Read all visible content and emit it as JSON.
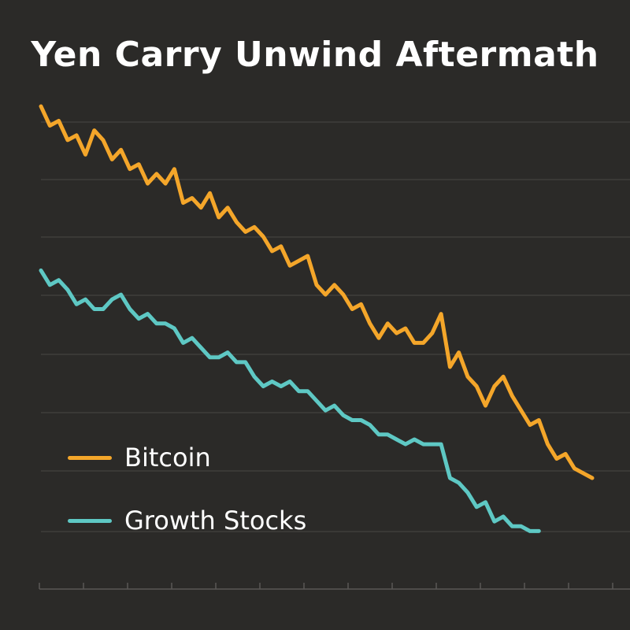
{
  "chart_data": {
    "type": "line",
    "title": "Yen Carry Unwind Aftermath",
    "xlabel": "",
    "ylabel": "",
    "xlim": [
      0,
      62
    ],
    "ylim": [
      0,
      100
    ],
    "grid": true,
    "legend_position": "bottom-left",
    "series": [
      {
        "name": "Bitcoin",
        "color": "#f4a62a",
        "x": [
          0,
          1,
          2,
          3,
          4,
          5,
          6,
          7,
          8,
          9,
          10,
          11,
          12,
          13,
          14,
          15,
          16,
          17,
          18,
          19,
          20,
          21,
          22,
          23,
          24,
          25,
          26,
          27,
          28,
          29,
          30,
          31,
          32,
          33,
          34,
          35,
          36,
          37,
          38,
          39,
          40,
          41,
          42,
          43,
          44,
          45,
          46,
          47,
          48,
          49,
          50,
          51,
          52,
          53,
          54,
          55,
          56,
          57,
          58,
          59,
          60,
          61,
          62
        ],
        "values": [
          100,
          96,
          97,
          93,
          94,
          90,
          95,
          93,
          89,
          91,
          87,
          88,
          84,
          86,
          84,
          87,
          80,
          81,
          79,
          82,
          77,
          79,
          76,
          74,
          75,
          73,
          70,
          71,
          67,
          68,
          69,
          63,
          61,
          63,
          61,
          58,
          59,
          55,
          52,
          55,
          53,
          54,
          51,
          51,
          53,
          57,
          46,
          49,
          44,
          42,
          38,
          42,
          44,
          40,
          37,
          34,
          35,
          30,
          27,
          28,
          25,
          24,
          23
        ],
        "y_unit": "relative"
      },
      {
        "name": "Growth Stocks",
        "color": "#5ec8c4",
        "x": [
          0,
          1,
          2,
          3,
          4,
          5,
          6,
          7,
          8,
          9,
          10,
          11,
          12,
          13,
          14,
          15,
          16,
          17,
          18,
          19,
          20,
          21,
          22,
          23,
          24,
          25,
          26,
          27,
          28,
          29,
          30,
          31,
          32,
          33,
          34,
          35,
          36,
          37,
          38,
          39,
          40,
          41,
          42,
          43,
          44,
          45,
          46,
          47,
          48,
          49,
          50,
          51,
          52,
          53,
          54,
          55,
          56
        ],
        "values": [
          66,
          63,
          64,
          62,
          59,
          60,
          58,
          58,
          60,
          61,
          58,
          56,
          57,
          55,
          55,
          54,
          51,
          52,
          50,
          48,
          48,
          49,
          47,
          47,
          44,
          42,
          43,
          42,
          43,
          41,
          41,
          39,
          37,
          38,
          36,
          35,
          35,
          34,
          32,
          32,
          31,
          30,
          31,
          30,
          30,
          30,
          23,
          22,
          20,
          17,
          18,
          14,
          15,
          13,
          13,
          12,
          12
        ],
        "y_unit": "relative"
      }
    ]
  }
}
